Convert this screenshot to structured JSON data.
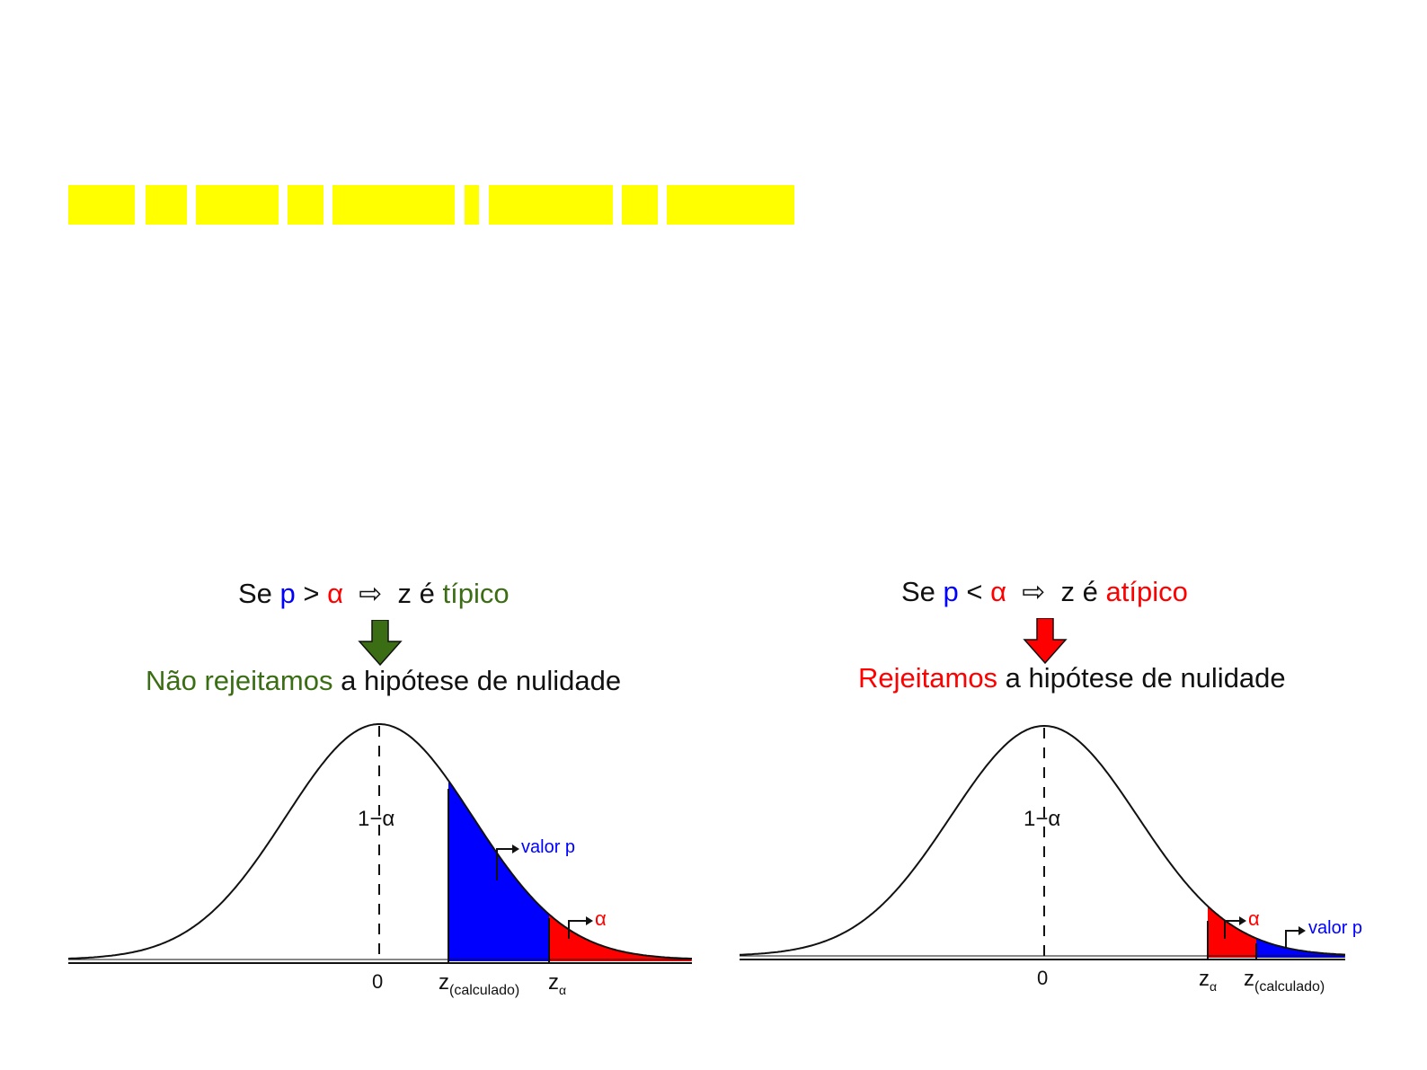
{
  "colors": {
    "title_block": "#ffff00",
    "p": "#0000ff",
    "alpha": "#ff0000",
    "typical_green": "#3b6e14",
    "reject_red": "#ff0000",
    "blue_area": "#0000ff",
    "red_area": "#ff0000"
  },
  "left": {
    "cond_prefix": "Se ",
    "cond_p": "p",
    "cond_op": " > ",
    "cond_alpha": "α",
    "cond_implies": "⇨",
    "cond_z": " z é ",
    "cond_result": "típico",
    "decision_colored": "Não rejeitamos",
    "decision_rest": " a hipótese de nulidade",
    "one_minus_alpha": "1−α",
    "zero": "0",
    "valor_p": "valor p",
    "alpha_label": "α",
    "z_calc_main": "z",
    "z_calc_sub": "(calculado)",
    "z_alpha_main": "z",
    "z_alpha_sub": "α"
  },
  "right": {
    "cond_prefix": "Se ",
    "cond_p": "p",
    "cond_op": " < ",
    "cond_alpha": "α",
    "cond_implies": "⇨",
    "cond_z": " z é ",
    "cond_result": "atípico",
    "decision_colored": "Rejeitamos",
    "decision_rest": " a hipótese de nulidade",
    "one_minus_alpha": "1−α",
    "zero": "0",
    "valor_p": "valor p",
    "alpha_label": "α",
    "z_alpha_main": "z",
    "z_alpha_sub": "α",
    "z_calc_main": "z",
    "z_calc_sub": "(calculado)"
  }
}
